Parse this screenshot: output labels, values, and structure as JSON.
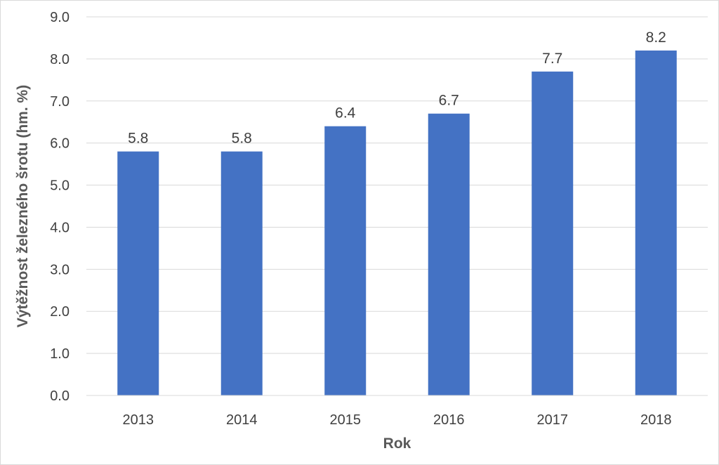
{
  "chart_data": {
    "type": "bar",
    "categories": [
      "2013",
      "2014",
      "2015",
      "2016",
      "2017",
      "2018"
    ],
    "values": [
      5.8,
      5.8,
      6.4,
      6.7,
      7.7,
      8.2
    ],
    "data_labels": [
      "5.8",
      "5.8",
      "6.4",
      "6.7",
      "7.7",
      "8.2"
    ],
    "title": "",
    "xlabel": "Rok",
    "ylabel": "Výtěžnost železného šrotu (hm. %)",
    "ylim": [
      0,
      9
    ],
    "yticks": [
      "0.0",
      "1.0",
      "2.0",
      "3.0",
      "4.0",
      "5.0",
      "6.0",
      "7.0",
      "8.0",
      "9.0"
    ],
    "grid": true,
    "legend": "none",
    "bar_color": "#4472C4",
    "grid_color": "#d9d9d9"
  }
}
